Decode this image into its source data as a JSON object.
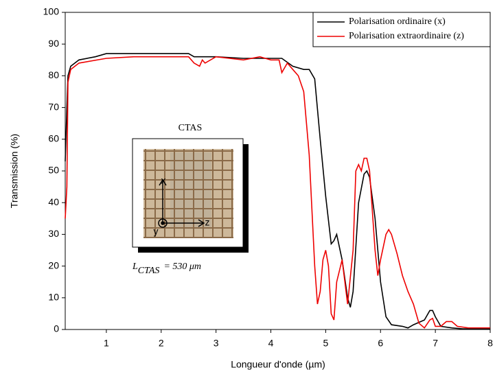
{
  "chart_data": {
    "type": "line",
    "xlabel": "Longueur d'onde (µm)",
    "ylabel": "Transmission (%)",
    "xlim": [
      0.25,
      8
    ],
    "ylim": [
      0,
      100
    ],
    "xticks": [
      1,
      2,
      3,
      4,
      5,
      6,
      7,
      8
    ],
    "yticks": [
      0,
      10,
      20,
      30,
      40,
      50,
      60,
      70,
      80,
      90,
      100
    ],
    "legend": "top-right",
    "series": [
      {
        "name": "Polarisation ordinaire (x)",
        "color": "#000000",
        "x": [
          0.25,
          0.28,
          0.3,
          0.35,
          0.5,
          0.8,
          1.0,
          1.5,
          2.0,
          2.5,
          2.6,
          2.7,
          2.8,
          3.0,
          3.5,
          4.0,
          4.2,
          4.4,
          4.6,
          4.7,
          4.8,
          4.9,
          5.0,
          5.1,
          5.15,
          5.2,
          5.3,
          5.4,
          5.45,
          5.5,
          5.6,
          5.7,
          5.75,
          5.8,
          5.9,
          6.0,
          6.1,
          6.2,
          6.4,
          6.5,
          6.6,
          6.8,
          6.9,
          6.95,
          7.0,
          7.1,
          7.3,
          7.5,
          8.0
        ],
        "values": [
          53,
          70,
          80,
          83,
          85,
          86,
          87,
          87,
          87,
          87,
          86,
          86,
          86,
          86,
          85.5,
          85.5,
          85.5,
          83,
          82,
          82,
          79,
          60,
          42,
          27,
          28,
          30,
          22,
          10,
          7,
          12,
          40,
          49,
          50,
          48,
          35,
          15,
          4,
          1.5,
          1,
          0.5,
          1.5,
          3,
          6,
          6,
          4,
          1,
          0.5,
          0.2,
          0.2
        ]
      },
      {
        "name": "Polarisation extraordinaire (z)",
        "color": "#ee0000",
        "x": [
          0.25,
          0.28,
          0.3,
          0.35,
          0.5,
          1.0,
          1.5,
          2.0,
          2.5,
          2.6,
          2.7,
          2.75,
          2.8,
          3.0,
          3.5,
          3.8,
          4.0,
          4.15,
          4.2,
          4.3,
          4.4,
          4.5,
          4.6,
          4.7,
          4.8,
          4.85,
          4.9,
          4.95,
          5.0,
          5.05,
          5.1,
          5.15,
          5.2,
          5.3,
          5.35,
          5.4,
          5.5,
          5.55,
          5.6,
          5.65,
          5.7,
          5.75,
          5.8,
          5.9,
          5.95,
          6.0,
          6.1,
          6.15,
          6.2,
          6.3,
          6.4,
          6.5,
          6.6,
          6.7,
          6.8,
          6.9,
          6.95,
          7.0,
          7.1,
          7.2,
          7.3,
          7.4,
          7.6,
          8.0
        ],
        "values": [
          35,
          45,
          78,
          82,
          84,
          85.5,
          86,
          86,
          86,
          84,
          83,
          85,
          84,
          86,
          85,
          86,
          85,
          85,
          81,
          84,
          82,
          80,
          75,
          55,
          20,
          8,
          12,
          22,
          25,
          20,
          5,
          3,
          15,
          22,
          15,
          8,
          25,
          50,
          52,
          50,
          54,
          54,
          50,
          25,
          17,
          22,
          30,
          31.5,
          30,
          24,
          17,
          12,
          8,
          2,
          0.5,
          3,
          3.5,
          1,
          1,
          2.5,
          2.5,
          1,
          0.5,
          0.5
        ]
      }
    ],
    "inset": {
      "title": "CTAS",
      "axes": [
        "x",
        "y",
        "z"
      ],
      "caption_symbol": "L",
      "caption_subscript": "CTAS",
      "caption_rest": "= 530 μm"
    }
  }
}
